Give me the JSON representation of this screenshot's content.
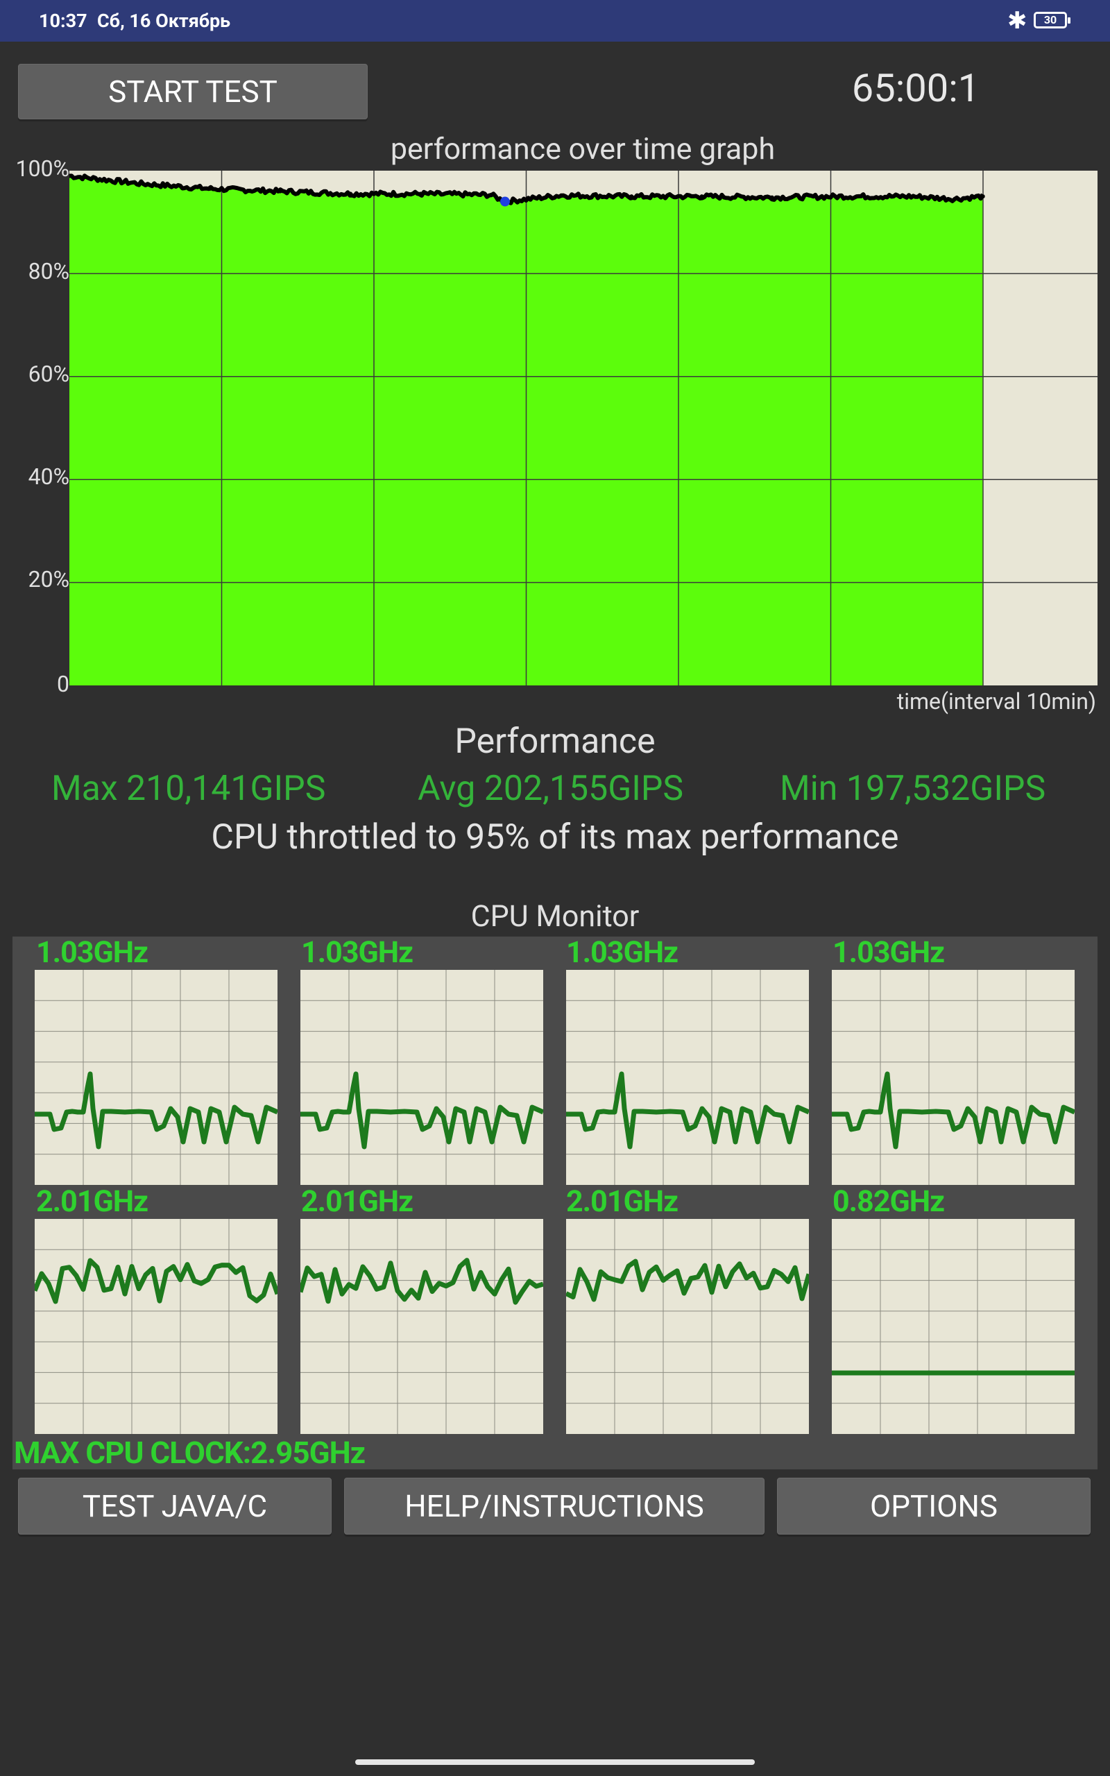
{
  "status_bar": {
    "time": "10:37",
    "date": "Сб, 16 Октябрь",
    "battery": "30",
    "bluetooth_glyph": "✱",
    "icons": [
      "bluetooth-icon",
      "battery-icon"
    ]
  },
  "controls": {
    "start_button": "START TEST",
    "timer": "65:00:1"
  },
  "graph": {
    "title": "performance over time graph",
    "x_label": "time(interval 10min)",
    "y_ticks": [
      "100%",
      "80%",
      "60%",
      "40%",
      "20%",
      "0"
    ]
  },
  "chart_data": {
    "type": "area",
    "title": "performance over time graph",
    "xlabel": "time(interval 10min)",
    "ylabel": "",
    "ylim": [
      0,
      100
    ],
    "grid": true,
    "fill_color": "#5cfd0c",
    "line_color": "#000000",
    "x": [
      0,
      5,
      10,
      15,
      20,
      25,
      30,
      31,
      35,
      40,
      45,
      50,
      55,
      60,
      63,
      65
    ],
    "series": [
      {
        "values": [
          99,
          97.5,
          96.5,
          96,
          95.5,
          95.5,
          95.3,
          94,
          95.2,
          95,
          95,
          94.8,
          95,
          95,
          94.5,
          95
        ]
      }
    ]
  },
  "performance": {
    "title": "Performance",
    "max": "Max 210,141GIPS",
    "avg": "Avg 202,155GIPS",
    "min": "Min 197,532GIPS",
    "throttle_text": "CPU throttled to 95% of its max performance",
    "accent_color": "#34b33a"
  },
  "cpu_monitor": {
    "title": "CPU Monitor",
    "cores": [
      {
        "freq": "1.03GHz"
      },
      {
        "freq": "1.03GHz"
      },
      {
        "freq": "1.03GHz"
      },
      {
        "freq": "1.03GHz"
      },
      {
        "freq": "2.01GHz"
      },
      {
        "freq": "2.01GHz"
      },
      {
        "freq": "2.01GHz"
      },
      {
        "freq": "0.82GHz"
      }
    ],
    "max_cpu_clock": "MAX CPU CLOCK:2.95GHz",
    "trace_color": "#1d7a1d"
  },
  "bottom_buttons": {
    "test_java_c": "TEST JAVA/C",
    "help": "HELP/INSTRUCTIONS",
    "options": "OPTIONS"
  }
}
